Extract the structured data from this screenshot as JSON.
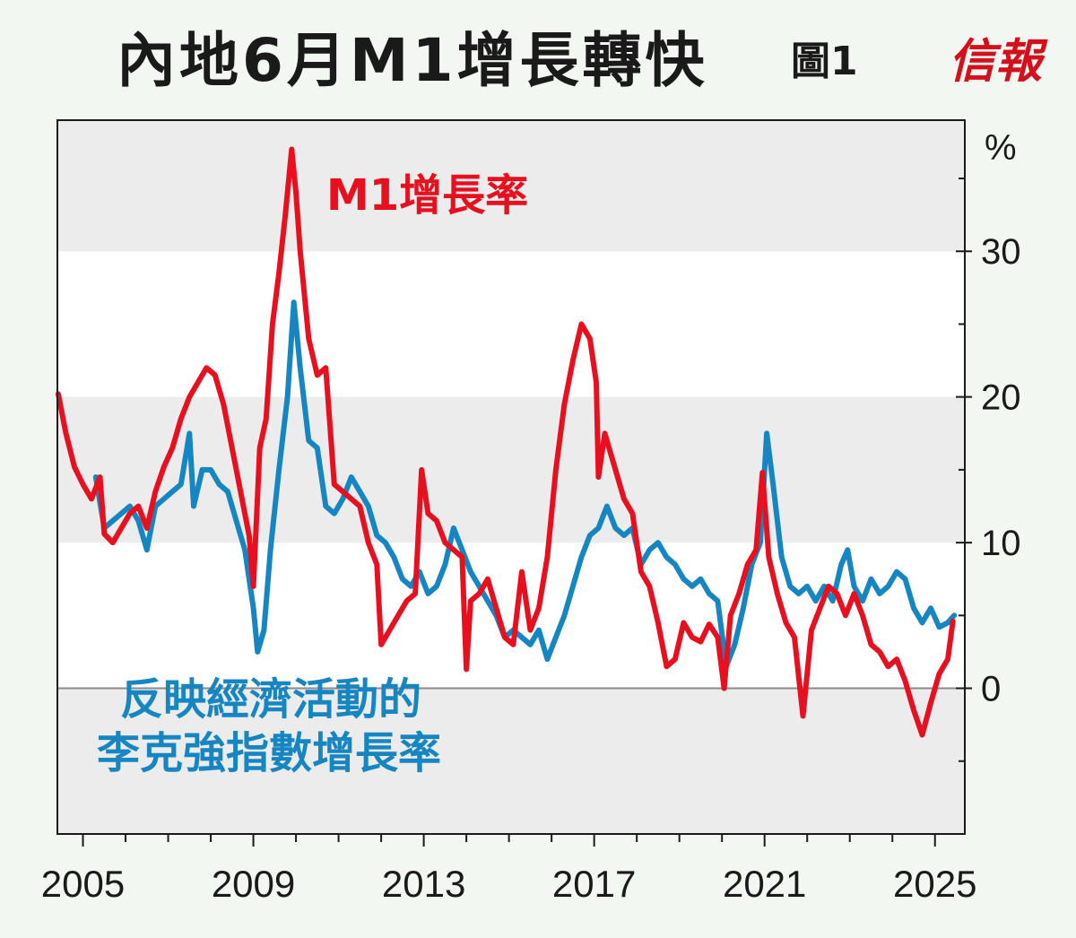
{
  "header": {
    "title": "內地6月M1增長轉快",
    "figure_label": "圖1",
    "logo_text": "信報"
  },
  "chart_data": {
    "type": "line",
    "title": "內地6月M1增長轉快",
    "unit_label": "%",
    "ylim": [
      -10,
      39
    ],
    "xlim": [
      2004.4,
      2025.7
    ],
    "y_ticks": [
      0,
      10,
      20,
      30
    ],
    "x_ticks": [
      2005,
      2009,
      2013,
      2017,
      2021,
      2025
    ],
    "background_bands": "alternating light grey bands every 10 points",
    "series": [
      {
        "name": "M1增長率",
        "label": "M1增長率",
        "color": "#e8101f",
        "points": [
          [
            2004.42,
            20.2
          ],
          [
            2004.6,
            17.5
          ],
          [
            2004.8,
            15.2
          ],
          [
            2005.0,
            14.0
          ],
          [
            2005.2,
            13.0
          ],
          [
            2005.4,
            14.5
          ],
          [
            2005.5,
            10.6
          ],
          [
            2005.7,
            10.0
          ],
          [
            2005.9,
            11.0
          ],
          [
            2006.1,
            12.0
          ],
          [
            2006.3,
            12.5
          ],
          [
            2006.5,
            11.0
          ],
          [
            2006.7,
            13.5
          ],
          [
            2006.9,
            15.2
          ],
          [
            2007.1,
            16.5
          ],
          [
            2007.3,
            18.5
          ],
          [
            2007.5,
            20.0
          ],
          [
            2007.7,
            21.0
          ],
          [
            2007.9,
            22.0
          ],
          [
            2008.1,
            21.5
          ],
          [
            2008.3,
            19.5
          ],
          [
            2008.5,
            16.5
          ],
          [
            2008.7,
            13.5
          ],
          [
            2008.9,
            10.5
          ],
          [
            2009.0,
            7.0
          ],
          [
            2009.15,
            16.5
          ],
          [
            2009.3,
            18.5
          ],
          [
            2009.45,
            25.0
          ],
          [
            2009.6,
            28.5
          ],
          [
            2009.75,
            32.5
          ],
          [
            2009.9,
            37.0
          ],
          [
            2010.0,
            34.0
          ],
          [
            2010.1,
            30.0
          ],
          [
            2010.3,
            24.0
          ],
          [
            2010.5,
            21.5
          ],
          [
            2010.7,
            22.0
          ],
          [
            2010.9,
            14.0
          ],
          [
            2011.1,
            13.5
          ],
          [
            2011.3,
            13.0
          ],
          [
            2011.5,
            12.5
          ],
          [
            2011.7,
            10.0
          ],
          [
            2011.9,
            8.5
          ],
          [
            2012.0,
            3.0
          ],
          [
            2012.2,
            4.0
          ],
          [
            2012.4,
            5.0
          ],
          [
            2012.6,
            6.0
          ],
          [
            2012.8,
            6.5
          ],
          [
            2012.95,
            15.0
          ],
          [
            2013.1,
            12.0
          ],
          [
            2013.3,
            11.5
          ],
          [
            2013.5,
            10.0
          ],
          [
            2013.7,
            9.5
          ],
          [
            2013.9,
            9.0
          ],
          [
            2014.0,
            1.3
          ],
          [
            2014.1,
            6.0
          ],
          [
            2014.3,
            6.5
          ],
          [
            2014.5,
            7.5
          ],
          [
            2014.7,
            5.5
          ],
          [
            2014.9,
            3.5
          ],
          [
            2015.1,
            3.0
          ],
          [
            2015.3,
            8.0
          ],
          [
            2015.5,
            4.0
          ],
          [
            2015.7,
            5.5
          ],
          [
            2015.9,
            9.0
          ],
          [
            2016.1,
            15.0
          ],
          [
            2016.3,
            19.5
          ],
          [
            2016.5,
            22.5
          ],
          [
            2016.7,
            25.0
          ],
          [
            2016.9,
            24.0
          ],
          [
            2017.05,
            21.0
          ],
          [
            2017.1,
            14.5
          ],
          [
            2017.25,
            17.5
          ],
          [
            2017.5,
            15.0
          ],
          [
            2017.7,
            13.0
          ],
          [
            2017.9,
            12.0
          ],
          [
            2018.1,
            8.0
          ],
          [
            2018.3,
            7.0
          ],
          [
            2018.5,
            4.5
          ],
          [
            2018.7,
            1.5
          ],
          [
            2018.9,
            2.0
          ],
          [
            2019.1,
            4.5
          ],
          [
            2019.3,
            3.5
          ],
          [
            2019.5,
            3.2
          ],
          [
            2019.7,
            4.4
          ],
          [
            2019.9,
            3.5
          ],
          [
            2020.05,
            0.0
          ],
          [
            2020.2,
            5.0
          ],
          [
            2020.4,
            6.5
          ],
          [
            2020.6,
            8.5
          ],
          [
            2020.8,
            9.5
          ],
          [
            2020.95,
            14.8
          ],
          [
            2021.1,
            9.0
          ],
          [
            2021.3,
            6.5
          ],
          [
            2021.5,
            4.5
          ],
          [
            2021.7,
            3.5
          ],
          [
            2021.9,
            -1.9
          ],
          [
            2022.1,
            4.0
          ],
          [
            2022.3,
            5.5
          ],
          [
            2022.5,
            7.0
          ],
          [
            2022.7,
            6.5
          ],
          [
            2022.9,
            5.0
          ],
          [
            2023.1,
            6.5
          ],
          [
            2023.3,
            5.0
          ],
          [
            2023.5,
            3.0
          ],
          [
            2023.7,
            2.5
          ],
          [
            2023.9,
            1.5
          ],
          [
            2024.1,
            2.0
          ],
          [
            2024.3,
            0.5
          ],
          [
            2024.5,
            -1.5
          ],
          [
            2024.7,
            -3.2
          ],
          [
            2024.9,
            -1.0
          ],
          [
            2025.1,
            1.0
          ],
          [
            2025.3,
            2.0
          ],
          [
            2025.42,
            4.6
          ]
        ]
      },
      {
        "name": "反映經濟活動的李克強指數增長率",
        "label": "反映經濟活動的李克強指數增長率",
        "color": "#1686c3",
        "points": [
          [
            2005.3,
            14.5
          ],
          [
            2005.5,
            11.0
          ],
          [
            2005.7,
            11.5
          ],
          [
            2005.9,
            12.0
          ],
          [
            2006.1,
            12.5
          ],
          [
            2006.3,
            11.5
          ],
          [
            2006.5,
            9.5
          ],
          [
            2006.7,
            12.5
          ],
          [
            2006.9,
            13.0
          ],
          [
            2007.1,
            13.5
          ],
          [
            2007.3,
            14.0
          ],
          [
            2007.5,
            17.5
          ],
          [
            2007.6,
            12.5
          ],
          [
            2007.8,
            15.0
          ],
          [
            2008.0,
            15.0
          ],
          [
            2008.2,
            14.0
          ],
          [
            2008.4,
            13.5
          ],
          [
            2008.6,
            11.5
          ],
          [
            2008.8,
            9.5
          ],
          [
            2009.0,
            5.5
          ],
          [
            2009.1,
            2.5
          ],
          [
            2009.25,
            4.0
          ],
          [
            2009.4,
            9.5
          ],
          [
            2009.6,
            15.0
          ],
          [
            2009.8,
            20.0
          ],
          [
            2009.95,
            26.5
          ],
          [
            2010.1,
            22.0
          ],
          [
            2010.3,
            17.0
          ],
          [
            2010.5,
            16.5
          ],
          [
            2010.7,
            12.5
          ],
          [
            2010.9,
            12.0
          ],
          [
            2011.1,
            13.0
          ],
          [
            2011.3,
            14.5
          ],
          [
            2011.5,
            13.5
          ],
          [
            2011.7,
            12.5
          ],
          [
            2011.9,
            10.5
          ],
          [
            2012.1,
            10.0
          ],
          [
            2012.3,
            9.0
          ],
          [
            2012.5,
            7.5
          ],
          [
            2012.7,
            7.0
          ],
          [
            2012.9,
            8.0
          ],
          [
            2013.1,
            6.5
          ],
          [
            2013.3,
            7.0
          ],
          [
            2013.5,
            8.5
          ],
          [
            2013.7,
            11.0
          ],
          [
            2013.9,
            9.5
          ],
          [
            2014.1,
            8.0
          ],
          [
            2014.3,
            7.0
          ],
          [
            2014.5,
            6.0
          ],
          [
            2014.7,
            5.0
          ],
          [
            2014.9,
            3.5
          ],
          [
            2015.1,
            4.0
          ],
          [
            2015.3,
            3.5
          ],
          [
            2015.5,
            3.0
          ],
          [
            2015.7,
            4.0
          ],
          [
            2015.9,
            2.0
          ],
          [
            2016.1,
            3.5
          ],
          [
            2016.3,
            5.0
          ],
          [
            2016.5,
            7.0
          ],
          [
            2016.7,
            9.0
          ],
          [
            2016.9,
            10.5
          ],
          [
            2017.1,
            11.0
          ],
          [
            2017.3,
            12.5
          ],
          [
            2017.5,
            11.0
          ],
          [
            2017.7,
            10.5
          ],
          [
            2017.9,
            11.0
          ],
          [
            2018.1,
            8.5
          ],
          [
            2018.3,
            9.5
          ],
          [
            2018.5,
            10.0
          ],
          [
            2018.7,
            9.0
          ],
          [
            2018.9,
            8.5
          ],
          [
            2019.1,
            7.5
          ],
          [
            2019.3,
            7.0
          ],
          [
            2019.5,
            7.5
          ],
          [
            2019.7,
            6.5
          ],
          [
            2019.9,
            6.0
          ],
          [
            2020.1,
            1.5
          ],
          [
            2020.3,
            3.0
          ],
          [
            2020.5,
            5.5
          ],
          [
            2020.7,
            8.5
          ],
          [
            2020.9,
            10.0
          ],
          [
            2021.05,
            17.5
          ],
          [
            2021.2,
            14.0
          ],
          [
            2021.4,
            9.0
          ],
          [
            2021.6,
            7.0
          ],
          [
            2021.8,
            6.5
          ],
          [
            2022.0,
            7.0
          ],
          [
            2022.2,
            6.0
          ],
          [
            2022.4,
            7.0
          ],
          [
            2022.6,
            6.0
          ],
          [
            2022.8,
            8.5
          ],
          [
            2022.95,
            9.5
          ],
          [
            2023.1,
            7.0
          ],
          [
            2023.3,
            6.0
          ],
          [
            2023.5,
            7.5
          ],
          [
            2023.7,
            6.5
          ],
          [
            2023.9,
            7.0
          ],
          [
            2024.1,
            8.0
          ],
          [
            2024.3,
            7.5
          ],
          [
            2024.5,
            5.5
          ],
          [
            2024.7,
            4.5
          ],
          [
            2024.9,
            5.5
          ],
          [
            2025.1,
            4.2
          ],
          [
            2025.3,
            4.5
          ],
          [
            2025.45,
            5.0
          ]
        ]
      }
    ]
  }
}
